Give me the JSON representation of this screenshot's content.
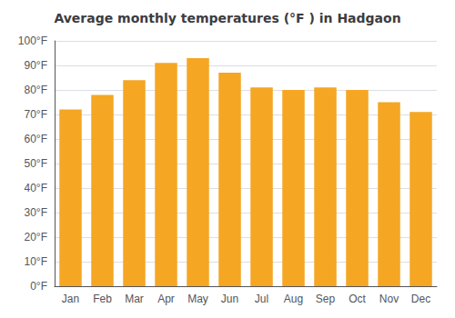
{
  "chart_data": {
    "type": "bar",
    "title": "Average monthly temperatures (°F ) in Hadgaon",
    "categories": [
      "Jan",
      "Feb",
      "Mar",
      "Apr",
      "May",
      "Jun",
      "Jul",
      "Aug",
      "Sep",
      "Oct",
      "Nov",
      "Dec"
    ],
    "values": [
      72,
      78,
      84,
      91,
      93,
      87,
      81,
      80,
      81,
      80,
      75,
      71
    ],
    "color": "#F5A623",
    "ylim": [
      0,
      100
    ],
    "yticks": [
      {
        "value": 0,
        "label": "0°F"
      },
      {
        "value": 10,
        "label": "10°F"
      },
      {
        "value": 20,
        "label": "20°F"
      },
      {
        "value": 30,
        "label": "30°F"
      },
      {
        "value": 40,
        "label": "40°F"
      },
      {
        "value": 50,
        "label": "50°F"
      },
      {
        "value": 60,
        "label": "60°F"
      },
      {
        "value": 70,
        "label": "70°F"
      },
      {
        "value": 80,
        "label": "80°F"
      },
      {
        "value": 90,
        "label": "90°F"
      },
      {
        "value": 100,
        "label": "100°F"
      }
    ],
    "grid": true
  }
}
